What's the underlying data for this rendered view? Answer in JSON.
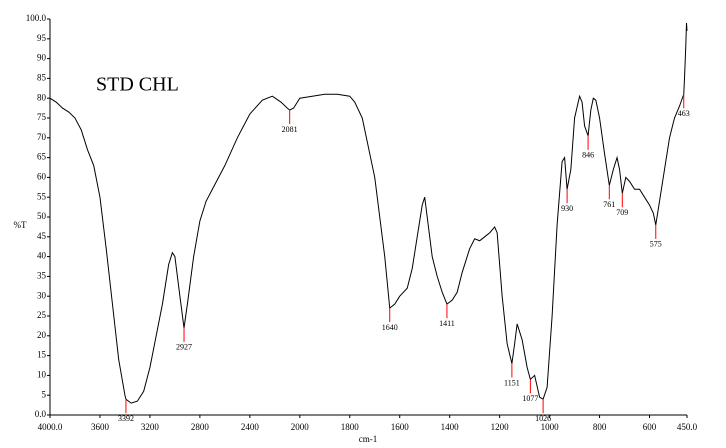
{
  "chart_data": {
    "type": "line",
    "title": "STD CHL",
    "x_label": "cm-1",
    "y_label": "%T",
    "x_scale_break": 2000,
    "xlim": [
      4000,
      450
    ],
    "ylim": [
      0,
      100
    ],
    "xticks": [
      {
        "value": 4000,
        "label": "4000.0"
      },
      3600,
      3200,
      2800,
      2400,
      2000,
      1800,
      1600,
      1400,
      1200,
      1000,
      800,
      600,
      {
        "value": 450,
        "label": "450.0"
      }
    ],
    "yticks": [
      {
        "value": 0,
        "label": "0.0"
      },
      5,
      10,
      15,
      20,
      25,
      30,
      35,
      40,
      45,
      50,
      55,
      60,
      65,
      70,
      75,
      80,
      85,
      90,
      95,
      {
        "value": 100,
        "label": "100.0"
      }
    ],
    "series": [
      {
        "name": "STD CHL",
        "color": "#000000",
        "x": [
          4000,
          3950,
          3900,
          3850,
          3800,
          3750,
          3700,
          3650,
          3600,
          3550,
          3500,
          3450,
          3400,
          3392,
          3350,
          3300,
          3250,
          3200,
          3150,
          3100,
          3050,
          3020,
          3000,
          2960,
          2927,
          2900,
          2850,
          2800,
          2750,
          2700,
          2600,
          2500,
          2400,
          2300,
          2220,
          2150,
          2100,
          2081,
          2050,
          2000,
          1950,
          1900,
          1850,
          1800,
          1780,
          1750,
          1700,
          1660,
          1640,
          1620,
          1600,
          1570,
          1550,
          1530,
          1510,
          1500,
          1490,
          1470,
          1450,
          1430,
          1411,
          1390,
          1370,
          1350,
          1320,
          1300,
          1280,
          1260,
          1240,
          1220,
          1210,
          1190,
          1170,
          1151,
          1140,
          1130,
          1110,
          1090,
          1077,
          1060,
          1040,
          1026,
          1010,
          990,
          970,
          950,
          940,
          930,
          915,
          900,
          880,
          870,
          860,
          846,
          835,
          825,
          815,
          800,
          780,
          761,
          745,
          730,
          720,
          709,
          695,
          680,
          660,
          640,
          620,
          600,
          585,
          575,
          560,
          540,
          520,
          500,
          480,
          463,
          460,
          455,
          452,
          450
        ],
        "values": [
          80,
          79,
          77.5,
          76.5,
          75,
          72,
          67,
          63,
          55,
          42,
          28,
          14,
          5,
          4,
          3,
          3.5,
          6,
          12,
          20,
          28,
          38,
          41,
          40,
          30,
          22,
          28,
          40,
          49,
          54,
          57,
          63,
          70,
          76,
          79.5,
          80.5,
          79,
          77.5,
          77,
          77.5,
          80,
          80.5,
          81,
          81,
          80.5,
          79,
          75,
          60,
          40,
          27,
          28,
          30,
          32,
          37,
          45,
          53,
          55,
          50,
          40,
          35,
          31,
          28,
          29,
          31,
          36,
          42,
          44.5,
          44,
          45,
          46,
          47.5,
          46,
          30,
          18,
          13,
          18,
          23,
          19,
          12,
          9,
          10,
          4.5,
          4,
          7,
          25,
          48,
          64,
          65,
          57,
          62,
          75,
          80.5,
          79,
          73,
          70.5,
          77,
          80,
          79.5,
          75,
          66,
          58,
          62,
          65,
          62,
          56,
          60,
          59,
          57,
          57,
          55,
          53,
          51,
          48,
          54,
          62,
          70,
          75,
          78,
          81,
          85,
          93,
          99,
          97
        ]
      }
    ],
    "peaks": {
      "color": "#ff0000",
      "x": [
        3392,
        2927,
        2081,
        1640,
        1411,
        1151,
        1077,
        1026,
        930,
        846,
        761,
        709,
        575,
        463
      ],
      "y": [
        4,
        22,
        77,
        27,
        28,
        13,
        9,
        4,
        57,
        70.5,
        58,
        56,
        48,
        81
      ]
    },
    "grid": false
  }
}
